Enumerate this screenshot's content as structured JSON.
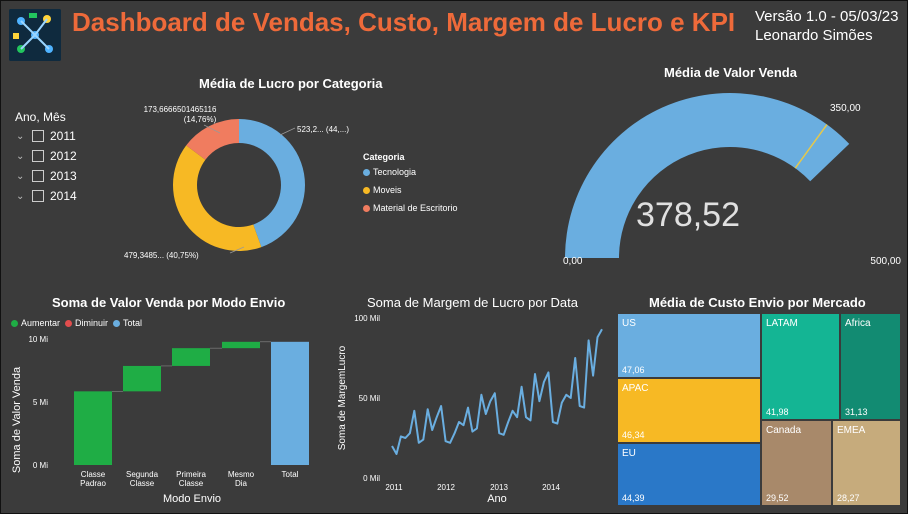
{
  "header": {
    "title": "Dashboard de Vendas, Custo, Margem de Lucro e KPI",
    "version": "Versão 1.0 - 05/03/23",
    "author": "Leonardo Simões"
  },
  "slicer": {
    "title": "Ano, Mês",
    "items": [
      "2011",
      "2012",
      "2013",
      "2014"
    ]
  },
  "donut": {
    "title": "Média de Lucro por Categoria",
    "legend_title": "Categoria",
    "segments": [
      {
        "name": "Tecnologia",
        "color": "#6aaee0",
        "label": "523,2... (44,...)",
        "share": 44.49
      },
      {
        "name": "Moveis",
        "color": "#f7b924",
        "label": "479,3485... (40,75%)",
        "share": 40.75
      },
      {
        "name": "Material de Escritorio",
        "color": "#f07c5f",
        "label_value": "173,6666501465116",
        "label_pct": "(14,76%)",
        "share": 14.76
      }
    ]
  },
  "gauge": {
    "title": "Média de Valor Venda",
    "value_label": "378,52",
    "value": 378.52,
    "min_label": "0,00",
    "max_label": "500,00",
    "target_label": "350,00",
    "min": 0,
    "max": 500,
    "target": 350,
    "color": "#6aaee0",
    "target_color": "#e6c84a"
  },
  "waterfall": {
    "title": "Soma de Valor Venda por Modo Envio",
    "legend": [
      {
        "name": "Aumentar",
        "color": "#1fad45"
      },
      {
        "name": "Diminuir",
        "color": "#e14d4d"
      },
      {
        "name": "Total",
        "color": "#6aaee0"
      }
    ],
    "ylabel": "Soma de Valor Venda",
    "xlabel": "Modo Envio",
    "yticks": [
      "0 Mi",
      "5 Mi",
      "10 Mi"
    ]
  },
  "line": {
    "title": "Soma de Margem de Lucro por Data",
    "ylabel": "Soma de MargemLucro",
    "xlabel": "Ano",
    "yticks": [
      "0 Mil",
      "50 Mil",
      "100 Mil"
    ],
    "xticks": [
      "2011",
      "2012",
      "2013",
      "2014"
    ],
    "color": "#6aaee0"
  },
  "treemap": {
    "title": "Média de Custo Envio por Mercado",
    "cells": [
      {
        "name": "US",
        "value": "47,06",
        "color": "#6aaee0"
      },
      {
        "name": "APAC",
        "value": "46,34",
        "color": "#f7b924"
      },
      {
        "name": "EU",
        "value": "44,39",
        "color": "#2a78c8"
      },
      {
        "name": "LATAM",
        "value": "41,98",
        "color": "#14b594"
      },
      {
        "name": "Africa",
        "value": "31,13",
        "color": "#128b72"
      },
      {
        "name": "Canada",
        "value": "29,52",
        "color": "#a8896a"
      },
      {
        "name": "EMEA",
        "value": "28,27",
        "color": "#c6ab7c"
      }
    ]
  },
  "chart_data": [
    {
      "type": "bar",
      "title": "Soma de Valor Venda por Modo Envio",
      "xlabel": "Modo Envio",
      "ylabel": "Soma de Valor Venda",
      "categories": [
        "Classe Padrao",
        "Segunda Classe",
        "Primeira Classe",
        "Mesmo Dia",
        "Total"
      ],
      "values": [
        5.8,
        2.0,
        1.4,
        0.5,
        9.7
      ],
      "kinds": [
        "Aumentar",
        "Aumentar",
        "Aumentar",
        "Aumentar",
        "Total"
      ],
      "ylim": [
        0,
        10
      ]
    },
    {
      "type": "line",
      "title": "Soma de Margem de Lucro por Data",
      "xlabel": "Ano",
      "ylabel": "Soma de MargemLucro",
      "x_start": "2011-01",
      "ylim": [
        0,
        100000
      ],
      "values": [
        20000,
        15000,
        26000,
        25000,
        28000,
        42000,
        22000,
        24000,
        43000,
        30000,
        38000,
        45000,
        23000,
        22000,
        28000,
        35000,
        33000,
        44000,
        29000,
        31000,
        52000,
        40000,
        48000,
        53000,
        28000,
        27000,
        35000,
        42000,
        38000,
        57000,
        38000,
        36000,
        65000,
        48000,
        60000,
        66000,
        35000,
        34000,
        47000,
        52000,
        50000,
        75000,
        45000,
        44000,
        86000,
        64000,
        88000,
        93000
      ]
    }
  ]
}
